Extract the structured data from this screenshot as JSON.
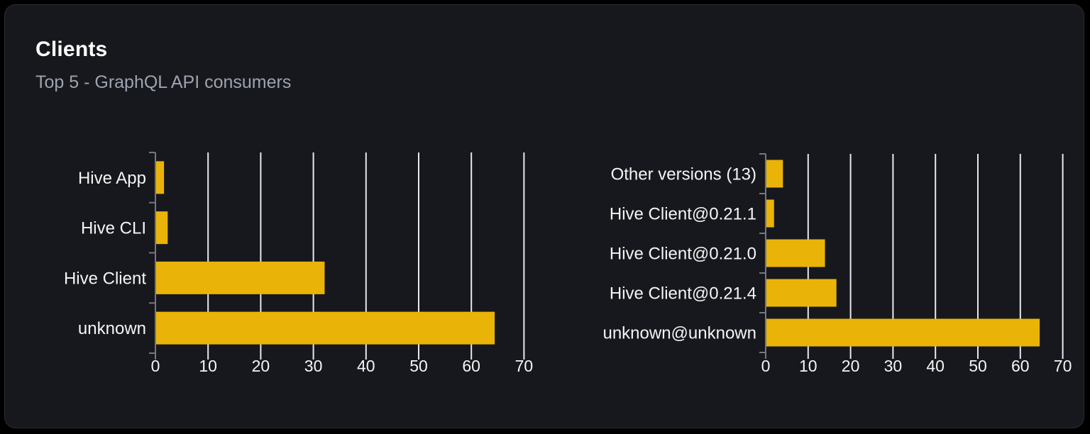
{
  "card": {
    "title": "Clients",
    "subtitle": "Top 5 - GraphQL API consumers"
  },
  "colors": {
    "page_bg": "#000000",
    "card_bg": "#17181d",
    "card_border": "#2b2c32",
    "bar": "#eab308",
    "gridline": "#e6e9f0",
    "axis": "#75787f",
    "label": "#f5f5f6",
    "subtitle": "#9ca3af"
  },
  "chart_data": [
    {
      "type": "bar",
      "orientation": "horizontal",
      "title": "",
      "xlabel": "",
      "ylabel": "",
      "categories_top_to_bottom": [
        "Hive App",
        "Hive CLI",
        "Hive Client",
        "unknown"
      ],
      "values": [
        1.5,
        2.2,
        32,
        64.3
      ],
      "xlim": [
        0,
        70
      ],
      "xticks": [
        0,
        10,
        20,
        30,
        40,
        50,
        60,
        70
      ],
      "grid": true,
      "legend": false
    },
    {
      "type": "bar",
      "orientation": "horizontal",
      "title": "",
      "xlabel": "",
      "ylabel": "",
      "categories_top_to_bottom": [
        "Other versions (13)",
        "Hive Client@0.21.1",
        "Hive Client@0.21.0",
        "Hive Client@0.21.4",
        "unknown@unknown"
      ],
      "values": [
        3.9,
        1.8,
        13.8,
        16.5,
        64.4
      ],
      "xlim": [
        0,
        70
      ],
      "xticks": [
        0,
        10,
        20,
        30,
        40,
        50,
        60,
        70
      ],
      "grid": true,
      "legend": false
    }
  ]
}
